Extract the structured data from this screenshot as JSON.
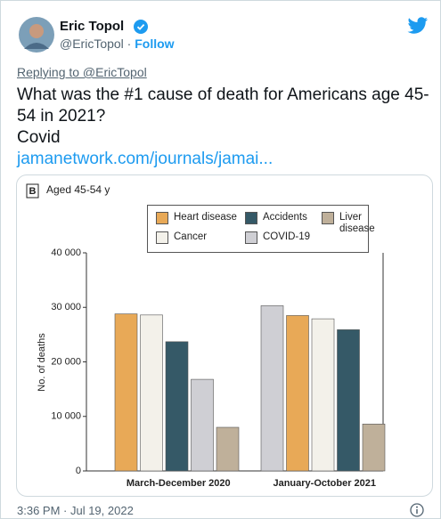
{
  "tweet": {
    "name": "Eric Topol",
    "handle": "@EricTopol",
    "follow": "Follow",
    "replying": "Replying to @EricTopol",
    "paragraphs": [
      "What was the #1 cause of death for Americans age 45-54 in 2021?",
      "Covid"
    ],
    "link": "jamanetwork.com/journals/jamai...",
    "timestamp": "3:36 PM · Jul 19, 2022"
  },
  "chart_data": {
    "type": "bar",
    "panel": "B",
    "title": "Aged 45-54 y",
    "y_label": "No. of deaths",
    "categories": [
      "March-December 2020",
      "January-October 2021"
    ],
    "series": [
      {
        "name": "Heart disease",
        "color": "#e8a957",
        "values": [
          28800,
          28500
        ]
      },
      {
        "name": "Cancer",
        "color": "#f3f1ea",
        "values": [
          28600,
          27900
        ]
      },
      {
        "name": "Accidents",
        "color": "#355967",
        "values": [
          23700,
          25900
        ]
      },
      {
        "name": "COVID-19",
        "color": "#cfcfd4",
        "values": [
          16800,
          30300
        ]
      },
      {
        "name": "Liver disease",
        "color": "#bfb09a",
        "values": [
          8000,
          8600
        ]
      }
    ],
    "ylim": [
      0,
      40000
    ],
    "yticks": [
      0,
      {
        "value": 10000,
        "label": "10 000"
      },
      {
        "value": 20000,
        "label": "20 000"
      },
      {
        "value": 30000,
        "label": "30 000"
      },
      {
        "value": 40000,
        "label": "40 000"
      }
    ]
  }
}
